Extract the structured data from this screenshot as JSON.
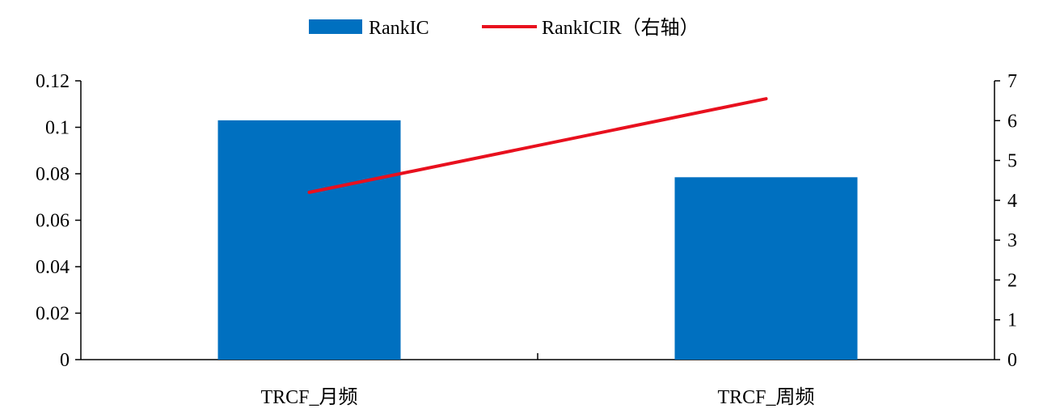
{
  "chart_data": {
    "type": "bar",
    "categories": [
      "TRCF_月频",
      "TRCF_周频"
    ],
    "series": [
      {
        "name": "RankIC",
        "type": "bar",
        "axis": "left",
        "values": [
          0.103,
          0.0785
        ]
      },
      {
        "name": "RankICIR（右轴）",
        "type": "line",
        "axis": "right",
        "values": [
          4.2,
          6.55
        ]
      }
    ],
    "left_axis": {
      "range": [
        0,
        0.12
      ],
      "ticks": [
        "0",
        "0.02",
        "0.04",
        "0.06",
        "0.08",
        "0.1",
        "0.12"
      ]
    },
    "right_axis": {
      "range": [
        0,
        7
      ],
      "ticks": [
        "0",
        "1",
        "2",
        "3",
        "4",
        "5",
        "6",
        "7"
      ]
    },
    "grid": false,
    "legend_position": "top-center",
    "colors": {
      "bar": "#0070C0",
      "line": "#E8101E"
    }
  }
}
